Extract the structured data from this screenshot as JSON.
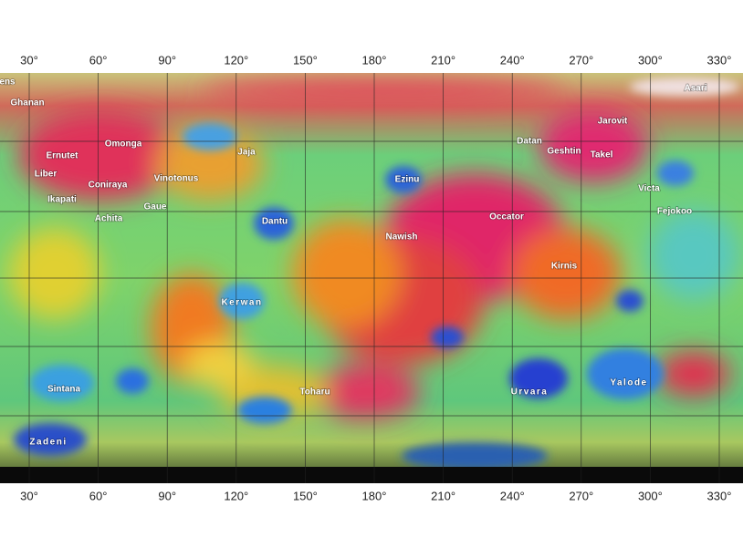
{
  "map": {
    "longitudes": [
      "30°",
      "60°",
      "90°",
      "120°",
      "150°",
      "180°",
      "210°",
      "240°",
      "270°",
      "300°",
      "330°"
    ],
    "features": [
      "ens",
      "Ghanan",
      "Asari",
      "Jarovit",
      "Ernutet",
      "Omonga",
      "Datan",
      "Geshtin",
      "Takel",
      "Liber",
      "Jaja",
      "Vinotonus",
      "Ezinu",
      "Coniraya",
      "Victa",
      "Ikapati",
      "Gaue",
      "Fejokoo",
      "Achita",
      "Dantu",
      "Occator",
      "Nawish",
      "Kirnis",
      "Kerwan",
      "Sintana",
      "Toharu",
      "Urvara",
      "Yalode",
      "Zadeni"
    ]
  }
}
